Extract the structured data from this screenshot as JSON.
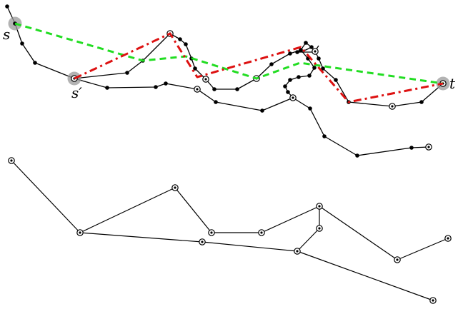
{
  "labels": {
    "s": "s",
    "s_prime": "s′",
    "t": "t"
  },
  "colors": {
    "edge": "#000000",
    "node": "#000000",
    "green_path": "#22dd22",
    "red_path": "#dd1111",
    "highlight": "#999999"
  }
}
